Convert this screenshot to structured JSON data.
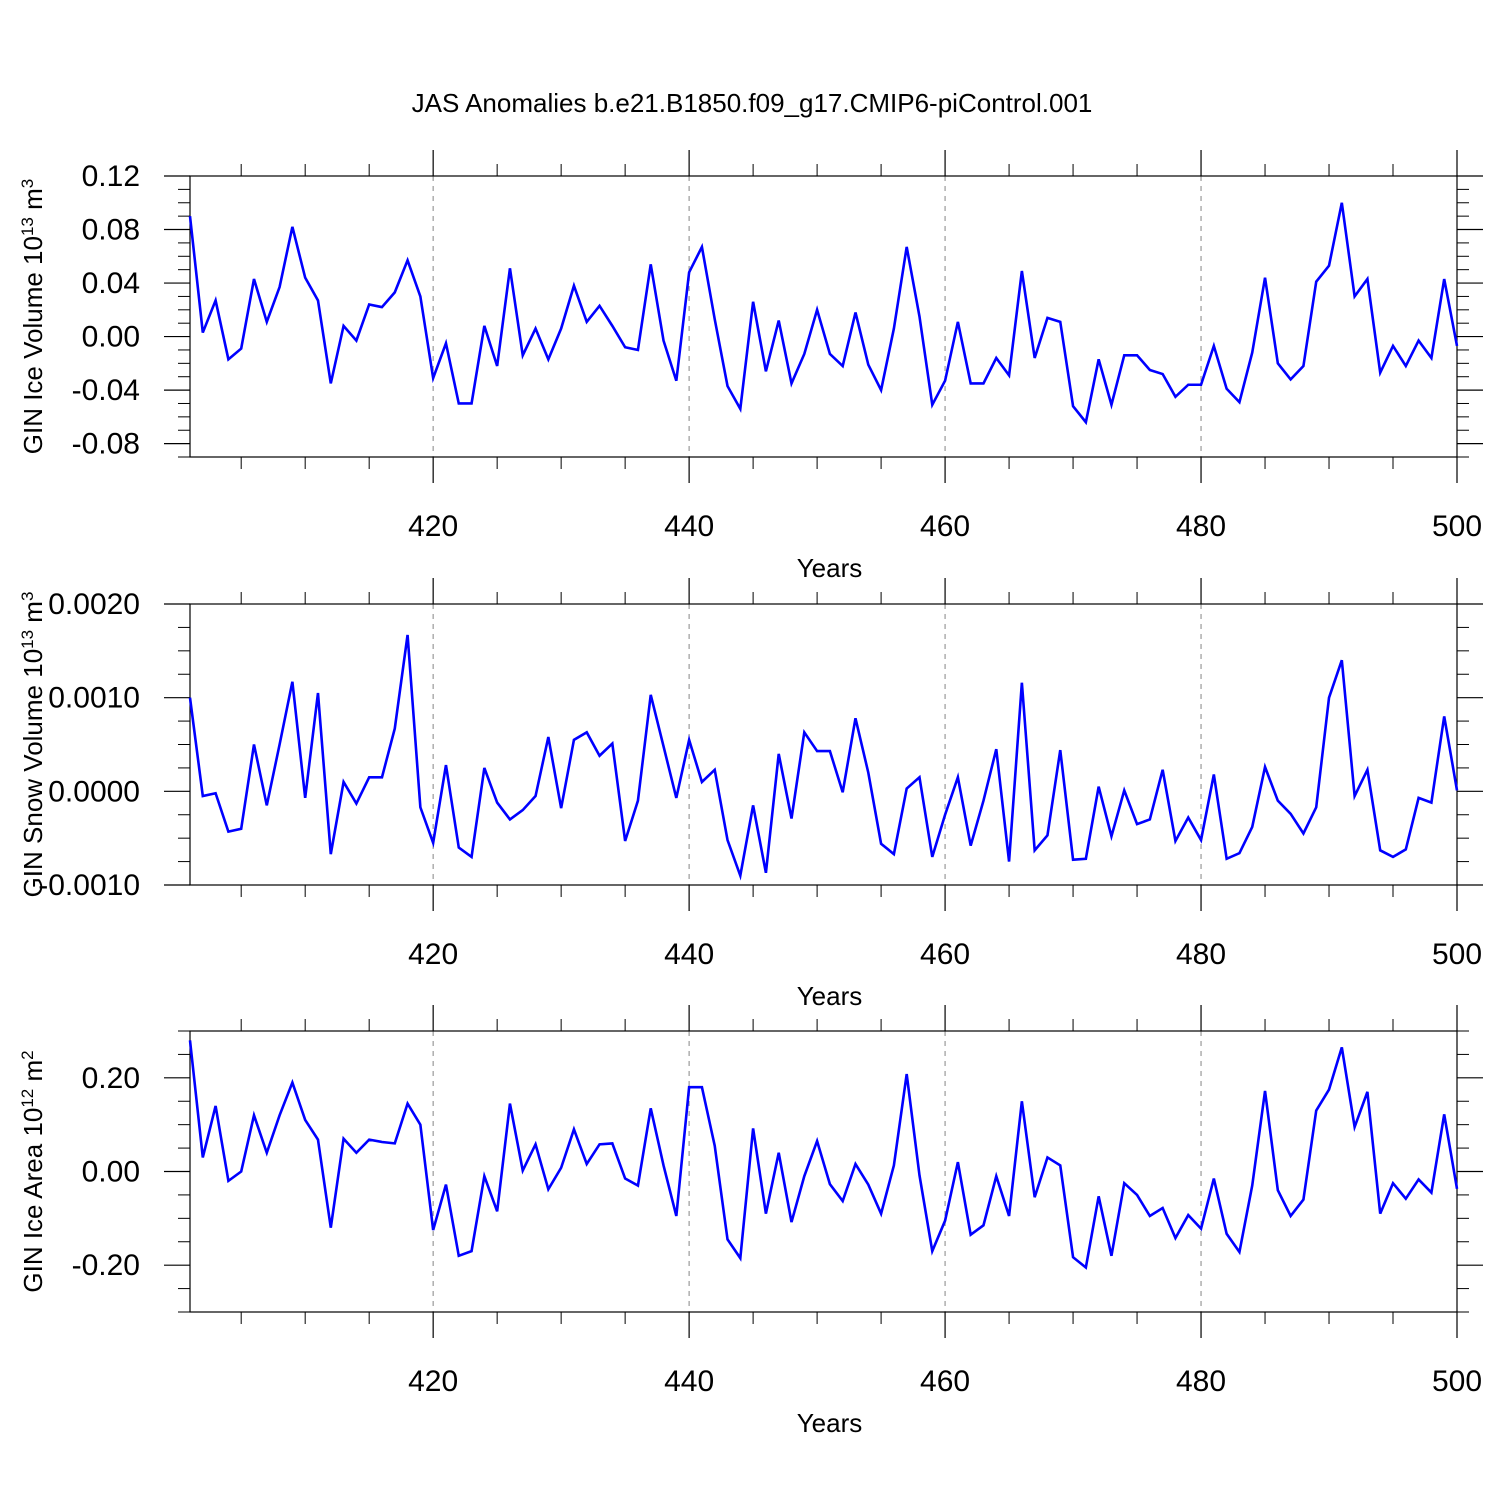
{
  "title": "JAS Anomalies b.e21.B1850.f09_g17.CMIP6-piControl.001",
  "colors": {
    "line": "#0000ff",
    "grid": "#9a9a9a",
    "axis": "#000000"
  },
  "chart_data": [
    {
      "type": "line",
      "ylabel_parts": {
        "pre": "GIN Ice Volume 10",
        "exp1": "13",
        "mid": " m",
        "exp2": "3"
      },
      "xlabel": "Years",
      "xlim": [
        401,
        500
      ],
      "ylim": [
        -0.09,
        0.12
      ],
      "xticks": [
        420,
        440,
        460,
        480,
        500
      ],
      "xtick_labels": [
        "420",
        "440",
        "460",
        "480",
        "500"
      ],
      "yticks": [
        -0.08,
        -0.04,
        0.0,
        0.04,
        0.08,
        0.12
      ],
      "ytick_labels": [
        "-0.08",
        "-0.04",
        "0.00",
        "0.04",
        "0.08",
        "0.12"
      ],
      "x_start": 401,
      "values": [
        0.09,
        0.003,
        0.027,
        -0.017,
        -0.009,
        0.043,
        0.011,
        0.037,
        0.082,
        0.044,
        0.027,
        -0.035,
        0.008,
        -0.003,
        0.024,
        0.022,
        0.033,
        0.057,
        0.03,
        -0.031,
        -0.005,
        -0.05,
        -0.05,
        0.008,
        -0.022,
        0.051,
        -0.014,
        0.006,
        -0.017,
        0.006,
        0.038,
        0.011,
        0.023,
        0.008,
        -0.008,
        -0.01,
        0.054,
        -0.003,
        -0.033,
        0.048,
        0.067,
        0.013,
        -0.037,
        -0.054,
        0.026,
        -0.026,
        0.012,
        -0.035,
        -0.013,
        0.02,
        -0.013,
        -0.022,
        0.018,
        -0.021,
        -0.04,
        0.006,
        0.067,
        0.015,
        -0.051,
        -0.033,
        0.011,
        -0.035,
        -0.035,
        -0.016,
        -0.029,
        0.049,
        -0.016,
        0.014,
        0.011,
        -0.052,
        -0.064,
        -0.017,
        -0.051,
        -0.014,
        -0.014,
        -0.025,
        -0.028,
        -0.045,
        -0.036,
        -0.036,
        -0.007,
        -0.039,
        -0.049,
        -0.012,
        0.044,
        -0.02,
        -0.032,
        -0.022,
        0.041,
        0.053,
        0.1,
        0.03,
        0.043,
        -0.027,
        -0.007,
        -0.022,
        -0.003,
        -0.016,
        0.043,
        -0.007
      ]
    },
    {
      "type": "line",
      "ylabel_parts": {
        "pre": "GIN Snow Volume 10",
        "exp1": "13",
        "mid": " m",
        "exp2": "3"
      },
      "xlabel": "Years",
      "xlim": [
        401,
        500
      ],
      "ylim": [
        -0.001,
        0.002
      ],
      "xticks": [
        420,
        440,
        460,
        480,
        500
      ],
      "xtick_labels": [
        "420",
        "440",
        "460",
        "480",
        "500"
      ],
      "yticks": [
        -0.001,
        0.0,
        0.001,
        0.002
      ],
      "ytick_labels": [
        "-0.0010",
        "0.0000",
        "0.0010",
        "0.0020"
      ],
      "x_start": 401,
      "values": [
        0.001,
        -5e-05,
        -2e-05,
        -0.00043,
        -0.0004,
        0.0005,
        -0.00015,
        0.0005,
        0.00117,
        -7e-05,
        0.00105,
        -0.00067,
        0.0001,
        -0.00013,
        0.00015,
        0.00015,
        0.00067,
        0.00167,
        -0.00017,
        -0.00055,
        0.00028,
        -0.0006,
        -0.0007,
        0.00025,
        -0.00012,
        -0.0003,
        -0.0002,
        -5e-05,
        0.00058,
        -0.00018,
        0.00055,
        0.00063,
        0.00038,
        0.00051,
        -0.00053,
        -0.0001,
        0.00103,
        0.00048,
        -7e-05,
        0.00055,
        0.0001,
        0.00023,
        -0.00052,
        -0.0009,
        -0.00015,
        -0.00087,
        0.0004,
        -0.00029,
        0.00063,
        0.00043,
        0.00043,
        -1e-05,
        0.00078,
        0.0002,
        -0.00056,
        -0.00067,
        3e-05,
        0.00015,
        -0.0007,
        -0.00025,
        0.00015,
        -0.00058,
        -0.0001,
        0.00045,
        -0.00075,
        0.00116,
        -0.00063,
        -0.00047,
        0.00044,
        -0.00073,
        -0.00072,
        5e-05,
        -0.00048,
        1e-05,
        -0.00035,
        -0.0003,
        0.00023,
        -0.00053,
        -0.00028,
        -0.00052,
        0.00018,
        -0.00072,
        -0.00066,
        -0.00038,
        0.00026,
        -0.0001,
        -0.00024,
        -0.00045,
        -0.00017,
        0.001,
        0.0014,
        -5e-05,
        0.00023,
        -0.00063,
        -0.0007,
        -0.00062,
        -7e-05,
        -0.00012,
        0.0008,
        1e-05
      ]
    },
    {
      "type": "line",
      "ylabel_parts": {
        "pre": "GIN Ice Area 10",
        "exp1": "12",
        "mid": " m",
        "exp2": "2"
      },
      "xlabel": "Years",
      "xlim": [
        401,
        500
      ],
      "ylim": [
        -0.3,
        0.3
      ],
      "xticks": [
        420,
        440,
        460,
        480,
        500
      ],
      "xtick_labels": [
        "420",
        "440",
        "460",
        "480",
        "500"
      ],
      "yticks": [
        -0.2,
        0.0,
        0.2
      ],
      "ytick_labels": [
        "-0.20",
        "0.00",
        "0.20"
      ],
      "x_start": 401,
      "values": [
        0.28,
        0.03,
        0.14,
        -0.02,
        0.0,
        0.12,
        0.04,
        0.12,
        0.19,
        0.11,
        0.068,
        -0.12,
        0.07,
        0.04,
        0.068,
        0.063,
        0.06,
        0.145,
        0.1,
        -0.125,
        -0.028,
        -0.18,
        -0.17,
        -0.01,
        -0.085,
        0.145,
        0.002,
        0.058,
        -0.038,
        0.008,
        0.09,
        0.016,
        0.058,
        0.06,
        -0.015,
        -0.03,
        0.135,
        0.013,
        -0.095,
        0.18,
        0.18,
        0.055,
        -0.145,
        -0.185,
        0.092,
        -0.09,
        0.04,
        -0.108,
        -0.01,
        0.065,
        -0.027,
        -0.063,
        0.016,
        -0.028,
        -0.09,
        0.013,
        0.208,
        -0.008,
        -0.17,
        -0.105,
        0.02,
        -0.135,
        -0.115,
        -0.01,
        -0.095,
        0.15,
        -0.055,
        0.03,
        0.013,
        -0.183,
        -0.205,
        -0.053,
        -0.18,
        -0.025,
        -0.05,
        -0.095,
        -0.078,
        -0.142,
        -0.093,
        -0.122,
        -0.015,
        -0.133,
        -0.172,
        -0.03,
        0.172,
        -0.04,
        -0.095,
        -0.06,
        0.13,
        0.175,
        0.265,
        0.095,
        0.17,
        -0.09,
        -0.025,
        -0.058,
        -0.017,
        -0.045,
        0.122,
        -0.037
      ]
    }
  ]
}
